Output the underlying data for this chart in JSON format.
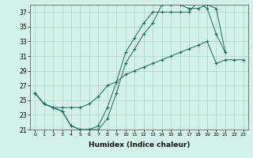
{
  "xlabel": "Humidex (Indice chaleur)",
  "xlim": [
    -0.5,
    23.5
  ],
  "ylim": [
    21,
    38
  ],
  "yticks": [
    21,
    23,
    25,
    27,
    29,
    31,
    33,
    35,
    37
  ],
  "xticks": [
    0,
    1,
    2,
    3,
    4,
    5,
    6,
    7,
    8,
    9,
    10,
    11,
    12,
    13,
    14,
    15,
    16,
    17,
    18,
    19,
    20,
    21,
    22,
    23
  ],
  "bg_color": "#d4f0ea",
  "grid_color": "#b0c8c0",
  "line_color": "#1a6b5a",
  "series1_x": [
    0,
    1,
    2,
    3,
    4,
    5,
    6,
    7,
    8,
    9,
    10,
    11,
    12,
    13,
    14,
    15,
    16,
    17,
    18,
    19,
    20,
    21
  ],
  "series1_y": [
    26.0,
    24.5,
    24.0,
    23.5,
    21.5,
    21.0,
    21.0,
    21.0,
    22.5,
    26.0,
    30.0,
    32.0,
    34.0,
    35.5,
    38.0,
    38.0,
    38.0,
    37.5,
    37.5,
    38.0,
    37.5,
    31.5
  ],
  "series2_x": [
    0,
    1,
    2,
    3,
    4,
    5,
    6,
    7,
    8,
    9,
    10,
    11,
    12,
    13,
    14,
    15,
    16,
    17,
    18,
    19,
    20,
    21
  ],
  "series2_y": [
    26.0,
    24.5,
    24.0,
    23.5,
    21.5,
    21.0,
    21.0,
    21.5,
    24.0,
    27.5,
    31.5,
    33.5,
    35.5,
    37.0,
    37.0,
    37.0,
    37.0,
    37.0,
    38.5,
    37.5,
    34.0,
    31.5
  ],
  "series3_x": [
    0,
    1,
    2,
    3,
    4,
    5,
    6,
    7,
    8,
    9,
    10,
    11,
    12,
    13,
    14,
    15,
    16,
    17,
    18,
    19,
    20,
    21,
    22,
    23
  ],
  "series3_y": [
    26.0,
    24.5,
    24.0,
    24.0,
    24.0,
    24.0,
    24.5,
    25.5,
    27.0,
    27.5,
    28.5,
    29.0,
    29.5,
    30.0,
    30.5,
    31.0,
    31.5,
    32.0,
    32.5,
    33.0,
    30.0,
    30.5,
    30.5,
    30.5
  ]
}
